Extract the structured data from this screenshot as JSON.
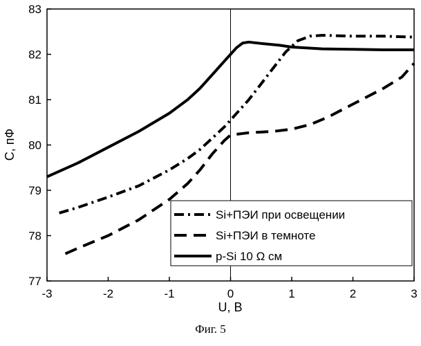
{
  "chart_data": {
    "type": "line",
    "xlabel": "U, B",
    "ylabel": "C, пФ",
    "xlim": [
      -3,
      3
    ],
    "ylim": [
      77,
      83
    ],
    "x_ticks": [
      -3,
      -2,
      -1,
      0,
      1,
      2,
      3
    ],
    "y_ticks": [
      77,
      78,
      79,
      80,
      81,
      82,
      83
    ],
    "vertical_reference_line_x": 0,
    "grid": false,
    "legend_position": "bottom-right",
    "series": [
      {
        "name": "Si+ПЭИ при освещении",
        "style": "dash-dot",
        "color": "#000000",
        "x": [
          -2.8,
          -2.5,
          -2.0,
          -1.5,
          -1.0,
          -0.7,
          -0.5,
          -0.3,
          -0.1,
          0.0,
          0.1,
          0.3,
          0.5,
          0.7,
          0.9,
          1.1,
          1.3,
          1.5,
          2.0,
          2.5,
          3.0
        ],
        "y": [
          78.5,
          78.62,
          78.85,
          79.1,
          79.45,
          79.7,
          79.9,
          80.15,
          80.4,
          80.55,
          80.7,
          81.0,
          81.35,
          81.7,
          82.05,
          82.3,
          82.4,
          82.42,
          82.4,
          82.4,
          82.38
        ]
      },
      {
        "name": "Si+ПЭИ в темноте",
        "style": "dashed",
        "color": "#000000",
        "x": [
          -2.7,
          -2.5,
          -2.0,
          -1.5,
          -1.0,
          -0.7,
          -0.5,
          -0.3,
          -0.1,
          0.0,
          0.3,
          0.7,
          1.0,
          1.3,
          1.6,
          2.0,
          2.5,
          2.8,
          3.0
        ],
        "y": [
          77.6,
          77.72,
          78.0,
          78.35,
          78.8,
          79.15,
          79.45,
          79.8,
          80.1,
          80.22,
          80.27,
          80.3,
          80.35,
          80.45,
          80.62,
          80.9,
          81.25,
          81.5,
          81.8
        ]
      },
      {
        "name": "p-Si 10 Ω см",
        "style": "solid",
        "color": "#000000",
        "x": [
          -3.0,
          -2.5,
          -2.0,
          -1.5,
          -1.0,
          -0.7,
          -0.5,
          -0.3,
          -0.1,
          0.0,
          0.1,
          0.2,
          0.3,
          0.5,
          0.8,
          1.0,
          1.5,
          2.0,
          2.5,
          3.0
        ],
        "y": [
          79.3,
          79.6,
          79.95,
          80.3,
          80.7,
          81.0,
          81.25,
          81.55,
          81.85,
          82.0,
          82.15,
          82.25,
          82.27,
          82.24,
          82.2,
          82.16,
          82.12,
          82.11,
          82.1,
          82.1
        ]
      }
    ]
  },
  "caption": "Фиг. 5"
}
